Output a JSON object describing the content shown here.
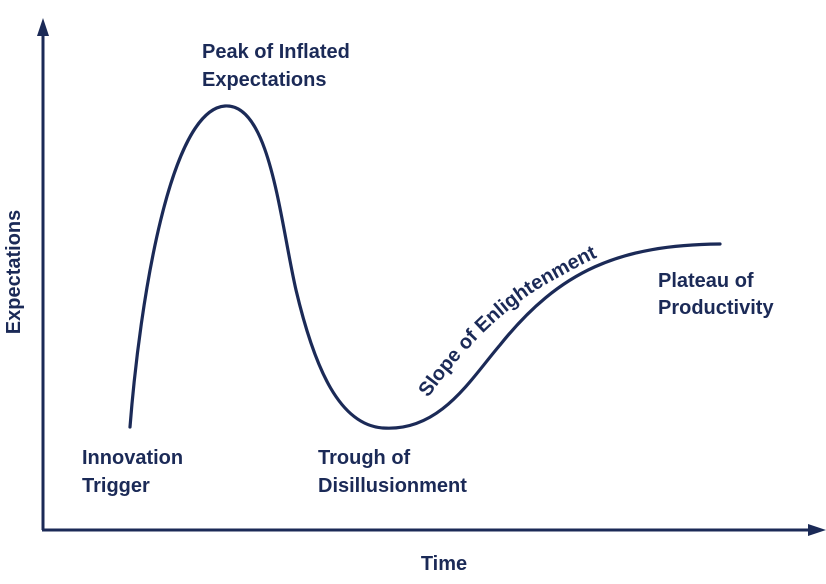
{
  "axes": {
    "x_label": "Time",
    "y_label": "Expectations"
  },
  "phases": {
    "innovation_trigger": {
      "line1": "Innovation",
      "line2": "Trigger"
    },
    "peak": {
      "line1": "Peak of Inflated",
      "line2": "Expectations"
    },
    "trough": {
      "line1": "Trough of",
      "line2": "Disillusionment"
    },
    "slope": {
      "text": "Slope of Enlightenment"
    },
    "plateau": {
      "line1": "Plateau of",
      "line2": "Productivity"
    }
  },
  "colors": {
    "ink": "#1b2a57",
    "background": "#ffffff"
  }
}
